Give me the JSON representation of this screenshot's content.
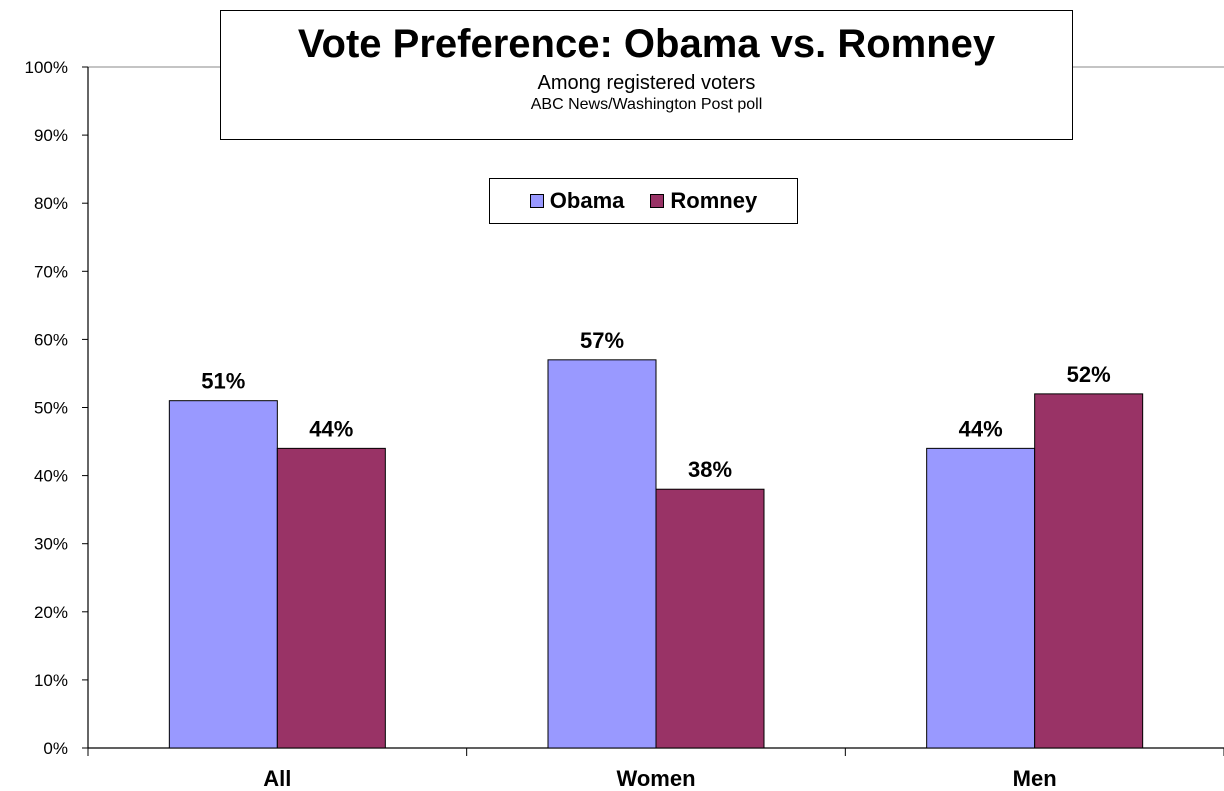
{
  "chart_data": {
    "type": "bar",
    "title": "Vote Preference: Obama vs. Romney",
    "subtitle": "Among registered voters",
    "source": "ABC News/Washington  Post poll",
    "categories": [
      "All",
      "Women",
      "Men"
    ],
    "series": [
      {
        "name": "Obama",
        "color": "#9999ff",
        "values": [
          51,
          57,
          44
        ],
        "labels": [
          "51%",
          "57%",
          "44%"
        ]
      },
      {
        "name": "Romney",
        "color": "#993366",
        "values": [
          44,
          38,
          52
        ],
        "labels": [
          "44%",
          "38%",
          "52%"
        ]
      }
    ],
    "ylim": [
      0,
      100
    ],
    "yticks": [
      "0%",
      "10%",
      "20%",
      "30%",
      "40%",
      "50%",
      "60%",
      "70%",
      "80%",
      "90%",
      "100%"
    ],
    "grid": "top border line only",
    "legend_position": "top-center"
  }
}
